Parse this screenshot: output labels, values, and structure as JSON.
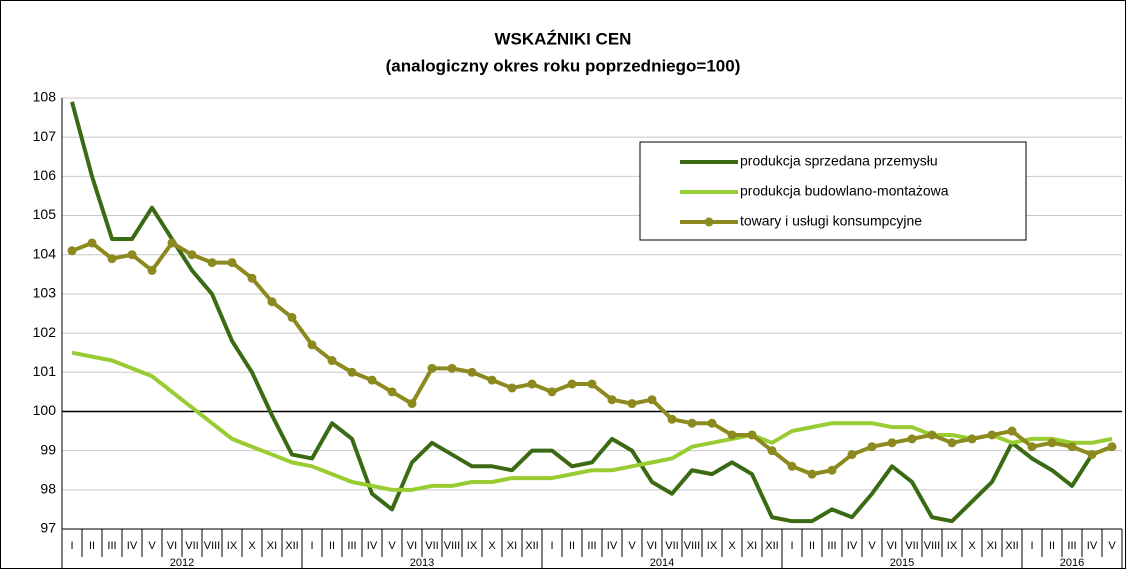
{
  "chart_data": {
    "type": "line",
    "title": "WSKAŹNIKI CEN",
    "subtitle": "(analogiczny okres roku poprzedniego=100)",
    "categories": [
      "I",
      "II",
      "III",
      "IV",
      "V",
      "VI",
      "VII",
      "VIII",
      "IX",
      "X",
      "XI",
      "XII",
      "I",
      "II",
      "III",
      "IV",
      "V",
      "VI",
      "VII",
      "VIII",
      "IX",
      "X",
      "XI",
      "XII",
      "I",
      "II",
      "III",
      "IV",
      "V",
      "VI",
      "VII",
      "VIII",
      "IX",
      "X",
      "XI",
      "XII",
      "I",
      "II",
      "III",
      "IV",
      "V",
      "VI",
      "VII",
      "VIII",
      "IX",
      "X",
      "XI",
      "XII",
      "I",
      "II",
      "III",
      "IV",
      "V"
    ],
    "groups": [
      {
        "name": "2012",
        "count": 12
      },
      {
        "name": "2013",
        "count": 12
      },
      {
        "name": "2014",
        "count": 12
      },
      {
        "name": "2015",
        "count": 12
      },
      {
        "name": "2016",
        "count": 5
      }
    ],
    "series": [
      {
        "name": "produkcja sprzedana przemysłu",
        "color": "#3a6b14",
        "marker": false,
        "values": [
          107.9,
          106.0,
          104.4,
          104.4,
          105.2,
          104.4,
          103.6,
          103.0,
          101.8,
          101.0,
          99.9,
          98.9,
          98.8,
          99.7,
          99.3,
          97.9,
          97.5,
          98.7,
          99.2,
          98.9,
          98.6,
          98.6,
          98.5,
          99.0,
          99.0,
          98.6,
          98.7,
          99.3,
          99.0,
          98.2,
          97.9,
          98.5,
          98.4,
          98.7,
          98.4,
          97.3,
          97.2,
          97.2,
          97.5,
          97.3,
          97.9,
          98.6,
          98.2,
          97.3,
          97.2,
          97.7,
          98.2,
          99.2,
          98.8,
          98.5,
          98.1,
          98.9,
          99.1
        ]
      },
      {
        "name": "produkcja budowlano-montażowa",
        "color": "#99cc33",
        "marker": false,
        "values": [
          101.5,
          101.4,
          101.3,
          101.1,
          100.9,
          100.5,
          100.1,
          99.7,
          99.3,
          99.1,
          98.9,
          98.7,
          98.6,
          98.4,
          98.2,
          98.1,
          98.0,
          98.0,
          98.1,
          98.1,
          98.2,
          98.2,
          98.3,
          98.3,
          98.3,
          98.4,
          98.5,
          98.5,
          98.6,
          98.7,
          98.8,
          99.1,
          99.2,
          99.3,
          99.4,
          99.2,
          99.5,
          99.6,
          99.7,
          99.7,
          99.7,
          99.6,
          99.6,
          99.4,
          99.4,
          99.3,
          99.4,
          99.2,
          99.3,
          99.3,
          99.2,
          99.2,
          99.3
        ]
      },
      {
        "name": "towary i usługi konsumpcyjne",
        "color": "#8c8a1e",
        "marker": true,
        "values": [
          104.1,
          104.3,
          103.9,
          104.0,
          103.6,
          104.3,
          104.0,
          103.8,
          103.8,
          103.4,
          102.8,
          102.4,
          101.7,
          101.3,
          101.0,
          100.8,
          100.5,
          100.2,
          101.1,
          101.1,
          101.0,
          100.8,
          100.6,
          100.7,
          100.5,
          100.7,
          100.7,
          100.3,
          100.2,
          100.3,
          99.8,
          99.7,
          99.7,
          99.4,
          99.4,
          99.0,
          98.6,
          98.4,
          98.5,
          98.9,
          99.1,
          99.2,
          99.3,
          99.4,
          99.2,
          99.3,
          99.4,
          99.5,
          99.1,
          99.2,
          99.1,
          98.9,
          99.1
        ]
      }
    ],
    "ylim": [
      97,
      108
    ],
    "yticks": [
      97,
      98,
      99,
      100,
      101,
      102,
      103,
      104,
      105,
      106,
      107,
      108
    ],
    "grid": true,
    "xaxis_crossing": 100,
    "legend": "upper right"
  }
}
